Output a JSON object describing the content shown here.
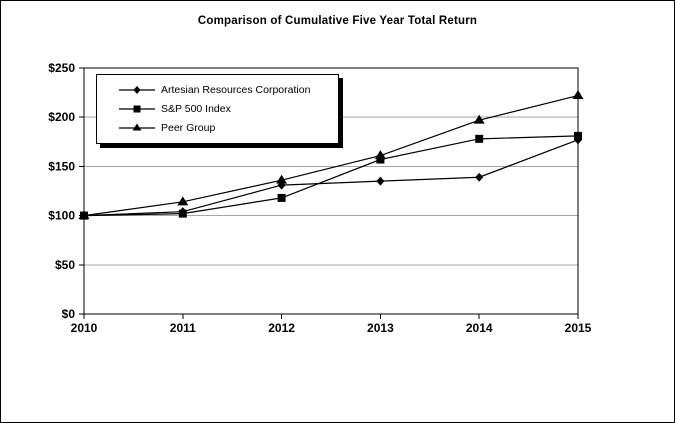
{
  "window": {
    "background_color": "#ffffff",
    "border_color": "#000000"
  },
  "chart": {
    "title": "Comparison of Cumulative Five Year Total Return"
  },
  "legend": {
    "items": [
      {
        "label": "Artesian Resources Corporation",
        "marker": "diamond"
      },
      {
        "label": "S&P 500 Index",
        "marker": "square"
      },
      {
        "label": "Peer Group",
        "marker": "triangle"
      }
    ]
  },
  "chart_data": {
    "type": "line",
    "title": "Comparison of Cumulative Five Year Total Return",
    "x": [
      2010,
      2011,
      2012,
      2013,
      2014,
      2015
    ],
    "x_tick_labels": [
      "2010",
      "2011",
      "2012",
      "2013",
      "2014",
      "2015"
    ],
    "y_tick_values": [
      0,
      50,
      100,
      150,
      200,
      250
    ],
    "y_tick_labels": [
      "$0",
      "$50",
      "$100",
      "$150",
      "$200",
      "$250"
    ],
    "ylim": [
      0,
      250
    ],
    "grid": true,
    "legend_position": "top-left-inside",
    "line_color": "#000000",
    "gridline_color": "#a6a6a6",
    "series": [
      {
        "name": "Artesian Resources Corporation",
        "marker": "diamond",
        "color": "#000000",
        "values": [
          100,
          104,
          131,
          135,
          139,
          177
        ]
      },
      {
        "name": "S&P 500 Index",
        "marker": "square",
        "color": "#000000",
        "values": [
          100,
          102,
          118,
          157,
          178,
          181
        ]
      },
      {
        "name": "Peer Group",
        "marker": "triangle",
        "color": "#000000",
        "values": [
          100,
          114,
          136,
          161,
          197,
          222
        ]
      }
    ]
  }
}
